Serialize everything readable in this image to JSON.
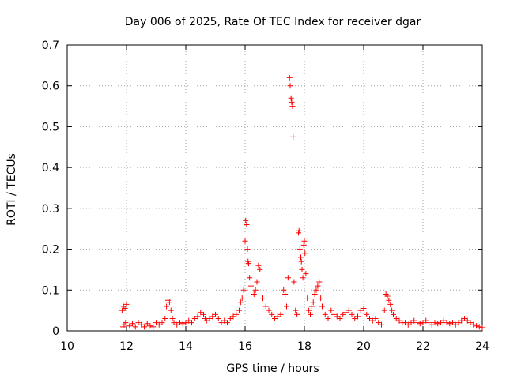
{
  "chart_data": {
    "type": "scatter",
    "title": "Day 006 of 2025, Rate Of TEC Index for receiver dgar",
    "xlabel": "GPS time / hours",
    "ylabel": "ROTI / TECUs",
    "xlim": [
      10,
      24
    ],
    "ylim": [
      0,
      0.7
    ],
    "xticks": [
      "10",
      "12",
      "14",
      "16",
      "18",
      "20",
      "22",
      "24"
    ],
    "yticks": [
      "0",
      "0.1",
      "0.2",
      "0.3",
      "0.4",
      "0.5",
      "0.6",
      "0.7"
    ],
    "grid": true,
    "legend": "none",
    "marker": "plus",
    "color": "#ff0000",
    "series": [
      {
        "x": [
          11.85,
          11.9,
          11.95,
          12.0,
          11.88,
          11.92,
          11.97,
          12.1,
          12.2,
          12.3,
          12.4,
          12.5,
          12.6,
          12.7,
          12.8,
          12.9,
          13.0,
          13.1,
          13.2,
          13.3,
          13.35,
          13.4,
          13.45,
          13.5,
          13.55,
          13.6,
          13.7,
          13.8,
          13.9,
          14.0,
          14.1,
          14.2,
          14.3,
          14.4,
          14.5,
          14.6,
          14.65,
          14.7,
          14.8,
          14.9,
          15.0,
          15.1,
          15.2,
          15.3,
          15.4,
          15.5,
          15.6,
          15.7,
          15.8,
          15.85,
          15.9,
          15.95,
          16.0,
          16.02,
          16.05,
          16.08,
          16.1,
          16.12,
          16.15,
          16.2,
          16.3,
          16.35,
          16.4,
          16.45,
          16.5,
          16.6,
          16.7,
          16.8,
          16.9,
          17.0,
          17.1,
          17.2,
          17.3,
          17.35,
          17.4,
          17.45,
          17.5,
          17.52,
          17.55,
          17.57,
          17.6,
          17.62,
          17.65,
          17.7,
          17.75,
          17.8,
          17.82,
          17.85,
          17.88,
          17.9,
          17.92,
          17.95,
          17.98,
          18.0,
          18.02,
          18.05,
          18.1,
          18.15,
          18.2,
          18.25,
          18.3,
          18.35,
          18.4,
          18.45,
          18.5,
          18.55,
          18.6,
          18.7,
          18.8,
          18.9,
          19.0,
          19.1,
          19.2,
          19.3,
          19.4,
          19.5,
          19.6,
          19.7,
          19.8,
          19.9,
          20.0,
          20.1,
          20.2,
          20.3,
          20.4,
          20.5,
          20.6,
          20.7,
          20.75,
          20.8,
          20.85,
          20.9,
          20.95,
          21.0,
          21.1,
          21.2,
          21.3,
          21.4,
          21.5,
          21.6,
          21.7,
          21.8,
          21.9,
          22.0,
          22.1,
          22.2,
          22.3,
          22.4,
          22.5,
          22.6,
          22.7,
          22.8,
          22.9,
          23.0,
          23.1,
          23.2,
          23.3,
          23.4,
          23.5,
          23.6,
          23.7,
          23.8,
          23.9,
          24.0
        ],
        "y": [
          0.05,
          0.06,
          0.055,
          0.065,
          0.01,
          0.015,
          0.02,
          0.012,
          0.018,
          0.01,
          0.02,
          0.015,
          0.01,
          0.018,
          0.012,
          0.01,
          0.02,
          0.015,
          0.02,
          0.03,
          0.06,
          0.075,
          0.07,
          0.05,
          0.03,
          0.02,
          0.015,
          0.02,
          0.018,
          0.02,
          0.025,
          0.02,
          0.03,
          0.035,
          0.045,
          0.04,
          0.03,
          0.025,
          0.03,
          0.035,
          0.04,
          0.03,
          0.02,
          0.025,
          0.02,
          0.03,
          0.035,
          0.04,
          0.05,
          0.07,
          0.08,
          0.1,
          0.22,
          0.27,
          0.26,
          0.2,
          0.17,
          0.165,
          0.13,
          0.11,
          0.09,
          0.1,
          0.12,
          0.16,
          0.15,
          0.08,
          0.06,
          0.05,
          0.04,
          0.03,
          0.035,
          0.04,
          0.1,
          0.09,
          0.06,
          0.13,
          0.62,
          0.6,
          0.57,
          0.56,
          0.55,
          0.475,
          0.12,
          0.05,
          0.04,
          0.24,
          0.245,
          0.2,
          0.18,
          0.17,
          0.15,
          0.13,
          0.21,
          0.22,
          0.19,
          0.14,
          0.08,
          0.05,
          0.04,
          0.06,
          0.07,
          0.09,
          0.1,
          0.11,
          0.12,
          0.08,
          0.06,
          0.04,
          0.03,
          0.05,
          0.04,
          0.035,
          0.03,
          0.04,
          0.045,
          0.05,
          0.04,
          0.03,
          0.035,
          0.05,
          0.055,
          0.04,
          0.03,
          0.025,
          0.03,
          0.02,
          0.015,
          0.05,
          0.09,
          0.085,
          0.075,
          0.065,
          0.05,
          0.04,
          0.03,
          0.025,
          0.02,
          0.02,
          0.015,
          0.02,
          0.025,
          0.02,
          0.018,
          0.02,
          0.025,
          0.02,
          0.015,
          0.02,
          0.018,
          0.02,
          0.025,
          0.02,
          0.018,
          0.02,
          0.015,
          0.02,
          0.025,
          0.03,
          0.025,
          0.02,
          0.015,
          0.012,
          0.01,
          0.008
        ]
      }
    ]
  }
}
